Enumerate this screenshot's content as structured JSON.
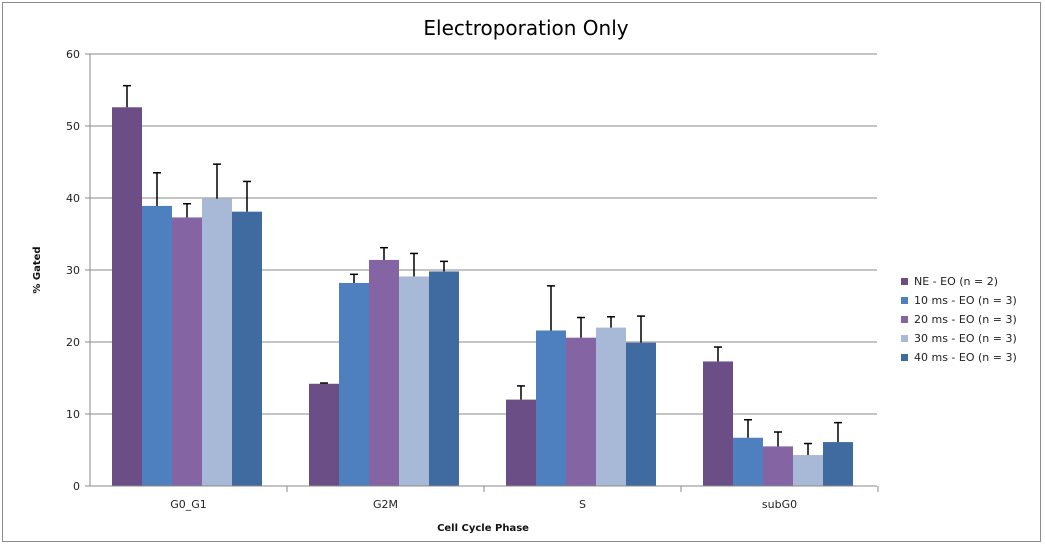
{
  "chart_data": {
    "type": "bar",
    "title": "Electroporation Only",
    "xlabel": "Cell Cycle Phase",
    "ylabel": "% Gated",
    "ylim": [
      0,
      60
    ],
    "yticks": [
      0,
      10,
      20,
      30,
      40,
      50,
      60
    ],
    "grid": true,
    "legend_position": "right",
    "categories": [
      "G0_G1",
      "G2M",
      "S",
      "subG0"
    ],
    "series": [
      {
        "name": "NE - EO (n = 2)",
        "color": "#6b4e86",
        "values": [
          52.6,
          14.2,
          12.0,
          17.3
        ],
        "errors": [
          3.0,
          0.1,
          1.9,
          2.0
        ]
      },
      {
        "name": "10 ms - EO (n = 3)",
        "color": "#4e80c0",
        "values": [
          38.9,
          28.2,
          21.6,
          6.7
        ],
        "errors": [
          4.6,
          1.2,
          6.2,
          2.5
        ]
      },
      {
        "name": "20 ms - EO (n = 3)",
        "color": "#8464a3",
        "values": [
          37.3,
          31.4,
          20.6,
          5.5
        ],
        "errors": [
          1.9,
          1.7,
          2.8,
          2.0
        ]
      },
      {
        "name": "30 ms - EO (n = 3)",
        "color": "#a8b9d8",
        "values": [
          39.9,
          29.1,
          22.0,
          4.3
        ],
        "errors": [
          4.8,
          3.2,
          1.5,
          1.6
        ]
      },
      {
        "name": "40 ms - EO (n = 3)",
        "color": "#3f6ba0",
        "values": [
          38.1,
          29.8,
          19.9,
          6.1
        ],
        "errors": [
          4.2,
          1.4,
          3.7,
          2.7
        ]
      }
    ]
  }
}
